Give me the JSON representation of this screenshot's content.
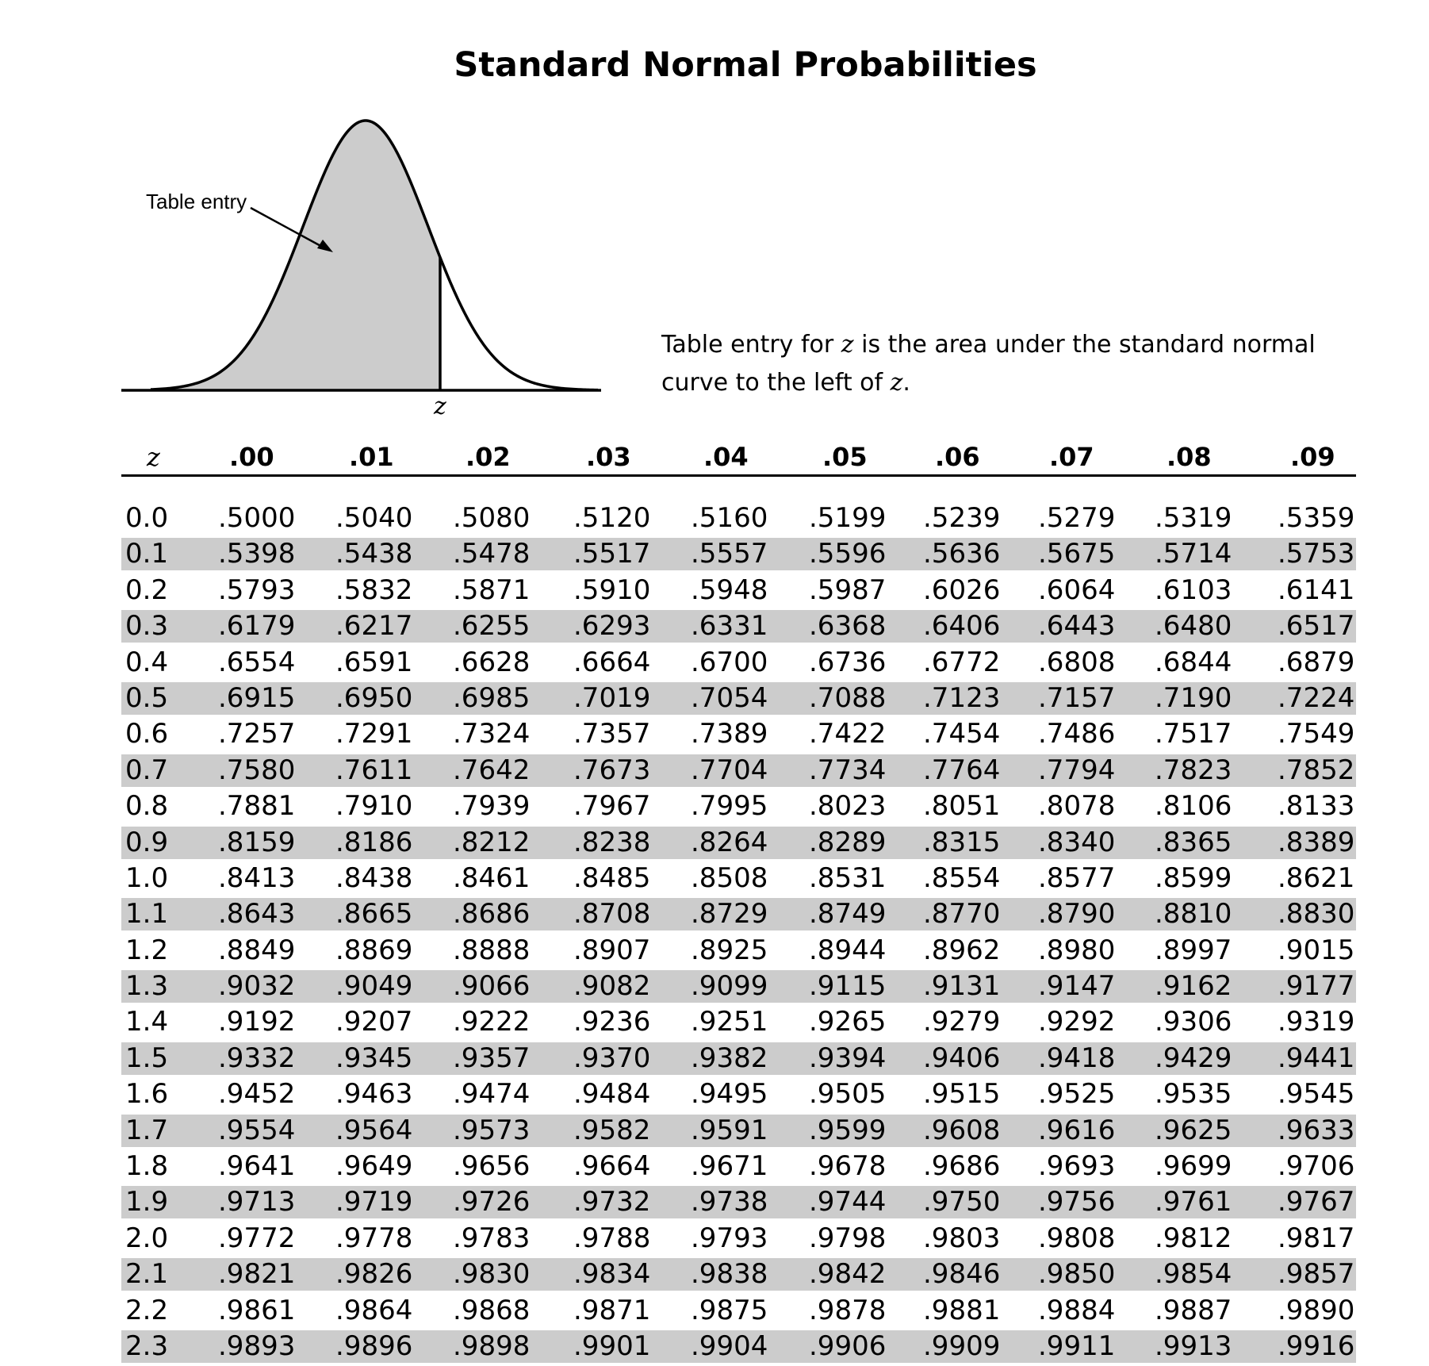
{
  "title": "Standard Normal Probabilities",
  "figure": {
    "arrow_label": "Table entry",
    "z_label": "z"
  },
  "description": {
    "part1": "Table entry for ",
    "var1": "z",
    "part2": " is the area under the standard normal curve to the left of ",
    "var2": "z",
    "part3": "."
  },
  "table": {
    "headers": [
      "z",
      ".00",
      ".01",
      ".02",
      ".03",
      ".04",
      ".05",
      ".06",
      ".07",
      ".08",
      ".09"
    ],
    "rows": [
      [
        "0.0",
        ".5000",
        ".5040",
        ".5080",
        ".5120",
        ".5160",
        ".5199",
        ".5239",
        ".5279",
        ".5319",
        ".5359"
      ],
      [
        "0.1",
        ".5398",
        ".5438",
        ".5478",
        ".5517",
        ".5557",
        ".5596",
        ".5636",
        ".5675",
        ".5714",
        ".5753"
      ],
      [
        "0.2",
        ".5793",
        ".5832",
        ".5871",
        ".5910",
        ".5948",
        ".5987",
        ".6026",
        ".6064",
        ".6103",
        ".6141"
      ],
      [
        "0.3",
        ".6179",
        ".6217",
        ".6255",
        ".6293",
        ".6331",
        ".6368",
        ".6406",
        ".6443",
        ".6480",
        ".6517"
      ],
      [
        "0.4",
        ".6554",
        ".6591",
        ".6628",
        ".6664",
        ".6700",
        ".6736",
        ".6772",
        ".6808",
        ".6844",
        ".6879"
      ],
      [
        "0.5",
        ".6915",
        ".6950",
        ".6985",
        ".7019",
        ".7054",
        ".7088",
        ".7123",
        ".7157",
        ".7190",
        ".7224"
      ],
      [
        "0.6",
        ".7257",
        ".7291",
        ".7324",
        ".7357",
        ".7389",
        ".7422",
        ".7454",
        ".7486",
        ".7517",
        ".7549"
      ],
      [
        "0.7",
        ".7580",
        ".7611",
        ".7642",
        ".7673",
        ".7704",
        ".7734",
        ".7764",
        ".7794",
        ".7823",
        ".7852"
      ],
      [
        "0.8",
        ".7881",
        ".7910",
        ".7939",
        ".7967",
        ".7995",
        ".8023",
        ".8051",
        ".8078",
        ".8106",
        ".8133"
      ],
      [
        "0.9",
        ".8159",
        ".8186",
        ".8212",
        ".8238",
        ".8264",
        ".8289",
        ".8315",
        ".8340",
        ".8365",
        ".8389"
      ],
      [
        "1.0",
        ".8413",
        ".8438",
        ".8461",
        ".8485",
        ".8508",
        ".8531",
        ".8554",
        ".8577",
        ".8599",
        ".8621"
      ],
      [
        "1.1",
        ".8643",
        ".8665",
        ".8686",
        ".8708",
        ".8729",
        ".8749",
        ".8770",
        ".8790",
        ".8810",
        ".8830"
      ],
      [
        "1.2",
        ".8849",
        ".8869",
        ".8888",
        ".8907",
        ".8925",
        ".8944",
        ".8962",
        ".8980",
        ".8997",
        ".9015"
      ],
      [
        "1.3",
        ".9032",
        ".9049",
        ".9066",
        ".9082",
        ".9099",
        ".9115",
        ".9131",
        ".9147",
        ".9162",
        ".9177"
      ],
      [
        "1.4",
        ".9192",
        ".9207",
        ".9222",
        ".9236",
        ".9251",
        ".9265",
        ".9279",
        ".9292",
        ".9306",
        ".9319"
      ],
      [
        "1.5",
        ".9332",
        ".9345",
        ".9357",
        ".9370",
        ".9382",
        ".9394",
        ".9406",
        ".9418",
        ".9429",
        ".9441"
      ],
      [
        "1.6",
        ".9452",
        ".9463",
        ".9474",
        ".9484",
        ".9495",
        ".9505",
        ".9515",
        ".9525",
        ".9535",
        ".9545"
      ],
      [
        "1.7",
        ".9554",
        ".9564",
        ".9573",
        ".9582",
        ".9591",
        ".9599",
        ".9608",
        ".9616",
        ".9625",
        ".9633"
      ],
      [
        "1.8",
        ".9641",
        ".9649",
        ".9656",
        ".9664",
        ".9671",
        ".9678",
        ".9686",
        ".9693",
        ".9699",
        ".9706"
      ],
      [
        "1.9",
        ".9713",
        ".9719",
        ".9726",
        ".9732",
        ".9738",
        ".9744",
        ".9750",
        ".9756",
        ".9761",
        ".9767"
      ],
      [
        "2.0",
        ".9772",
        ".9778",
        ".9783",
        ".9788",
        ".9793",
        ".9798",
        ".9803",
        ".9808",
        ".9812",
        ".9817"
      ],
      [
        "2.1",
        ".9821",
        ".9826",
        ".9830",
        ".9834",
        ".9838",
        ".9842",
        ".9846",
        ".9850",
        ".9854",
        ".9857"
      ],
      [
        "2.2",
        ".9861",
        ".9864",
        ".9868",
        ".9871",
        ".9875",
        ".9878",
        ".9881",
        ".9884",
        ".9887",
        ".9890"
      ],
      [
        "2.3",
        ".9893",
        ".9896",
        ".9898",
        ".9901",
        ".9904",
        ".9906",
        ".9909",
        ".9911",
        ".9913",
        ".9916"
      ]
    ]
  }
}
